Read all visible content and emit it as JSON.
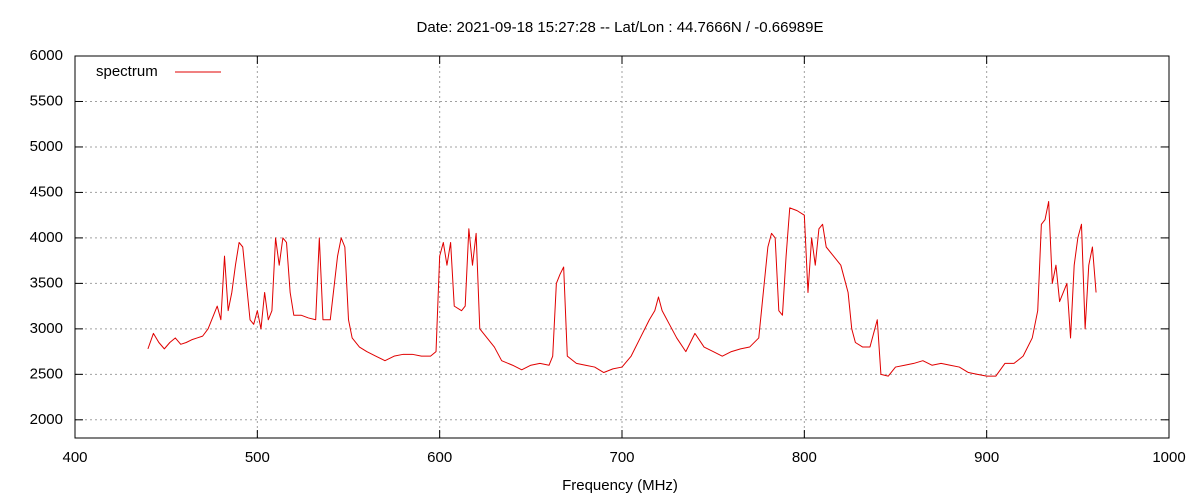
{
  "chart_data": {
    "type": "line",
    "title": "Date: 2021-09-18 15:27:28  --  Lat/Lon : 44.7666N / -0.66989E",
    "x_label": "Frequency (MHz)",
    "xlim": [
      400,
      1000
    ],
    "xticks": [
      400,
      500,
      600,
      700,
      800,
      900,
      1000
    ],
    "ylim": [
      1800,
      6000
    ],
    "yticks": [
      2000,
      2500,
      3000,
      3500,
      4000,
      4500,
      5000,
      5500,
      6000
    ],
    "grid": true,
    "legend": "top-left",
    "x": [
      440,
      443,
      446,
      449,
      452,
      455,
      458,
      461,
      464,
      467,
      470,
      473,
      476,
      478,
      480,
      482,
      484,
      486,
      488,
      490,
      492,
      494,
      496,
      498,
      500,
      502,
      504,
      506,
      508,
      510,
      512,
      514,
      516,
      518,
      520,
      524,
      528,
      532,
      534,
      536,
      540,
      544,
      546,
      548,
      550,
      552,
      556,
      560,
      565,
      570,
      575,
      580,
      585,
      590,
      595,
      598,
      600,
      602,
      604,
      606,
      608,
      612,
      614,
      616,
      618,
      620,
      622,
      626,
      630,
      634,
      640,
      645,
      650,
      655,
      660,
      662,
      664,
      666,
      668,
      670,
      675,
      680,
      685,
      690,
      695,
      700,
      705,
      710,
      715,
      718,
      720,
      722,
      726,
      730,
      735,
      740,
      745,
      750,
      755,
      760,
      765,
      770,
      775,
      778,
      780,
      782,
      784,
      786,
      788,
      790,
      792,
      796,
      800,
      802,
      804,
      806,
      808,
      810,
      812,
      816,
      820,
      824,
      826,
      828,
      832,
      836,
      840,
      842,
      846,
      850,
      855,
      860,
      865,
      870,
      875,
      880,
      885,
      890,
      895,
      900,
      905,
      910,
      915,
      920,
      925,
      928,
      930,
      932,
      934,
      936,
      938,
      940,
      944,
      946,
      948,
      950,
      952,
      954,
      956,
      958,
      960
    ],
    "series": [
      {
        "name": "spectrum",
        "color": "#e00000",
        "values": [
          2780,
          2950,
          2850,
          2780,
          2850,
          2900,
          2830,
          2850,
          2880,
          2900,
          2920,
          3000,
          3150,
          3250,
          3100,
          3800,
          3200,
          3400,
          3700,
          3950,
          3900,
          3500,
          3100,
          3050,
          3200,
          3000,
          3400,
          3100,
          3200,
          4000,
          3700,
          4000,
          3950,
          3400,
          3150,
          3150,
          3120,
          3100,
          4000,
          3100,
          3100,
          3800,
          4000,
          3900,
          3100,
          2900,
          2800,
          2750,
          2700,
          2650,
          2700,
          2720,
          2720,
          2700,
          2700,
          2750,
          3800,
          3950,
          3700,
          3950,
          3250,
          3200,
          3250,
          4100,
          3700,
          4050,
          3000,
          2900,
          2800,
          2650,
          2600,
          2550,
          2600,
          2620,
          2600,
          2700,
          3500,
          3600,
          3680,
          2700,
          2620,
          2600,
          2580,
          2520,
          2560,
          2580,
          2700,
          2900,
          3100,
          3200,
          3350,
          3200,
          3050,
          2900,
          2750,
          2950,
          2800,
          2750,
          2700,
          2750,
          2780,
          2800,
          2900,
          3500,
          3900,
          4050,
          4000,
          3200,
          3150,
          3800,
          4330,
          4300,
          4250,
          3400,
          4000,
          3700,
          4100,
          4150,
          3900,
          3800,
          3700,
          3400,
          3000,
          2850,
          2800,
          2800,
          3100,
          2500,
          2480,
          2580,
          2600,
          2620,
          2650,
          2600,
          2620,
          2600,
          2580,
          2520,
          2500,
          2480,
          2480,
          2620,
          2620,
          2700,
          2900,
          3200,
          4150,
          4200,
          4400,
          3500,
          3700,
          3300,
          3500,
          2900,
          3700,
          4000,
          4150,
          3000,
          3700,
          3900,
          3400
        ]
      }
    ]
  }
}
